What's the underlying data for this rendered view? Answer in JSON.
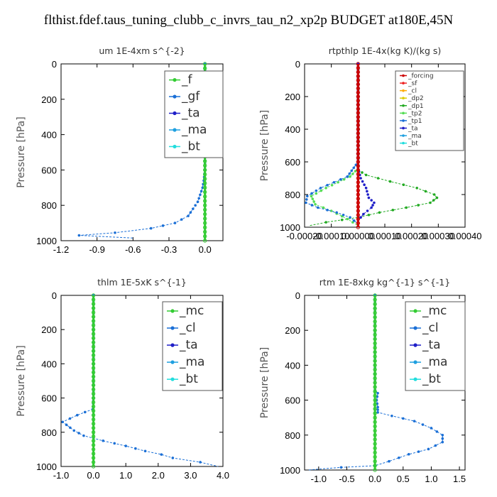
{
  "title": "flthist.fdef.taus_tuning_clubb_c_invrs_tau_n2_xp2p  BUDGET at180E,45N",
  "chart_data": [
    {
      "type": "line",
      "title": "um   1E-4xm  s^{-2}",
      "ylabel": "Pressure [hPa]",
      "xlim": [
        -1.2,
        0.15
      ],
      "ylim": [
        1000,
        0
      ],
      "xticks": [
        "-1.2",
        "-0.9",
        "-0.6",
        "-0.3",
        "0.0"
      ],
      "xtick_values": [
        -1.2,
        -0.9,
        -0.6,
        -0.3,
        0.0
      ],
      "yticks": [
        "0",
        "200",
        "400",
        "600",
        "800",
        "1000"
      ],
      "ytick_values": [
        0,
        200,
        400,
        600,
        800,
        1000
      ],
      "legend_position": "top-right",
      "legend": [
        {
          "label": "_f",
          "color": "#33cc33"
        },
        {
          "label": "_gf",
          "color": "#1a6fd6"
        },
        {
          "label": "_ta",
          "color": "#1f1fc8"
        },
        {
          "label": "_ma",
          "color": "#1fa0e0"
        },
        {
          "label": "_bt",
          "color": "#22dddd"
        }
      ],
      "series": [
        {
          "label": "_gf",
          "color": "#1a6fd6",
          "points": [
            [
              0.0,
              0
            ],
            [
              0.0,
              200
            ],
            [
              0.0,
              400
            ],
            [
              0.0,
              600
            ],
            [
              -0.01,
              660
            ],
            [
              -0.02,
              700
            ],
            [
              -0.04,
              740
            ],
            [
              -0.06,
              780
            ],
            [
              -0.1,
              820
            ],
            [
              -0.14,
              860
            ],
            [
              -0.25,
              900
            ],
            [
              -0.45,
              930
            ],
            [
              -0.75,
              955
            ],
            [
              -1.05,
              970
            ],
            [
              -0.6,
              985
            ]
          ]
        },
        {
          "label": "_f",
          "color": "#33cc33",
          "points": [
            [
              0.0,
              0
            ],
            [
              0.0,
              1000
            ]
          ]
        }
      ]
    },
    {
      "type": "line",
      "title": "rtpthlp   1E-4x(kg K)/(kg s)",
      "ylabel": "Pressure [hPa]",
      "xlim": [
        -0.0002,
        0.0004
      ],
      "ylim": [
        1000,
        0
      ],
      "xticks": [
        "-0.00020",
        "-0.00010",
        "0.00000",
        "0.00010",
        "0.00020",
        "0.00030",
        "0.00040"
      ],
      "xtick_values": [
        -0.0002,
        -0.0001,
        0.0,
        0.0001,
        0.0002,
        0.0003,
        0.0004
      ],
      "yticks": [
        "0",
        "200",
        "400",
        "600",
        "800",
        "1000"
      ],
      "ytick_values": [
        0,
        200,
        400,
        600,
        800,
        1000
      ],
      "legend_position": "top-right",
      "legend": [
        {
          "label": "_forcing",
          "color": "#cc0000"
        },
        {
          "label": "_sf",
          "color": "#ee2222"
        },
        {
          "label": "_cl",
          "color": "#ffaa00"
        },
        {
          "label": "_dp2",
          "color": "#ddcc00"
        },
        {
          "label": "_dp1",
          "color": "#22aa22"
        },
        {
          "label": "_tp2",
          "color": "#55dd55"
        },
        {
          "label": "_tp1",
          "color": "#1a6fd6"
        },
        {
          "label": "_ta",
          "color": "#1f1fc8"
        },
        {
          "label": "_ma",
          "color": "#1fa0e0"
        },
        {
          "label": "_bt",
          "color": "#22dddd"
        }
      ],
      "series": [
        {
          "label": "_dp1",
          "color": "#22aa22",
          "points": [
            [
              0.0,
              0
            ],
            [
              0.0,
              600
            ],
            [
              0.0,
              650
            ],
            [
              3e-05,
              680
            ],
            [
              0.00012,
              720
            ],
            [
              0.00022,
              760
            ],
            [
              0.000285,
              800
            ],
            [
              0.000295,
              820
            ],
            [
              0.00027,
              850
            ],
            [
              0.00018,
              880
            ],
            [
              8e-05,
              910
            ],
            [
              0.0,
              940
            ],
            [
              -0.00012,
              970
            ],
            [
              -0.00018,
              990
            ]
          ]
        },
        {
          "label": "_tp2",
          "color": "#55dd55",
          "points": [
            [
              0.0,
              0
            ],
            [
              0.0,
              640
            ],
            [
              -3e-05,
              690
            ],
            [
              -0.00012,
              760
            ],
            [
              -0.000175,
              810
            ],
            [
              -0.00016,
              860
            ],
            [
              -0.0001,
              900
            ],
            [
              -4e-05,
              950
            ],
            [
              0.0,
              990
            ]
          ]
        },
        {
          "label": "_tp1",
          "color": "#1a6fd6",
          "points": [
            [
              0.0,
              0
            ],
            [
              0.0,
              600
            ],
            [
              -4e-05,
              690
            ],
            [
              -0.00014,
              760
            ],
            [
              -0.00019,
              810
            ],
            [
              -0.000195,
              850
            ],
            [
              -0.00015,
              880
            ],
            [
              -8e-05,
              910
            ],
            [
              -3e-05,
              940
            ],
            [
              0.0,
              980
            ]
          ]
        },
        {
          "label": "_ta",
          "color": "#1f1fc8",
          "points": [
            [
              0.0,
              0
            ],
            [
              0.0,
              640
            ],
            [
              1e-05,
              700
            ],
            [
              3e-05,
              760
            ],
            [
              4e-05,
              820
            ],
            [
              6e-05,
              850
            ],
            [
              5e-05,
              880
            ],
            [
              2e-05,
              920
            ],
            [
              0.0,
              960
            ]
          ]
        },
        {
          "label": "_forcing",
          "color": "#cc0000",
          "points": [
            [
              0.0,
              0
            ],
            [
              0.0,
              1000
            ]
          ]
        }
      ]
    },
    {
      "type": "line",
      "title": "thlm   1E-5xK  s^{-1}",
      "ylabel": "Pressure [hPa]",
      "xlim": [
        -1.0,
        4.0
      ],
      "ylim": [
        1000,
        0
      ],
      "xticks": [
        "-1.0",
        "0.0",
        "1.0",
        "2.0",
        "3.0",
        "4.0"
      ],
      "xtick_values": [
        -1.0,
        0.0,
        1.0,
        2.0,
        3.0,
        4.0
      ],
      "yticks": [
        "0",
        "200",
        "400",
        "600",
        "800",
        "1000"
      ],
      "ytick_values": [
        0,
        200,
        400,
        600,
        800,
        1000
      ],
      "legend_position": "top-right",
      "legend": [
        {
          "label": "_mc",
          "color": "#33cc33"
        },
        {
          "label": "_cl",
          "color": "#1a6fd6"
        },
        {
          "label": "_ta",
          "color": "#1f1fc8"
        },
        {
          "label": "_ma",
          "color": "#1fa0e0"
        },
        {
          "label": "_bt",
          "color": "#22dddd"
        }
      ],
      "series": [
        {
          "label": "_cl",
          "color": "#1a6fd6",
          "points": [
            [
              0.0,
              0
            ],
            [
              0.0,
              600
            ],
            [
              -0.02,
              665
            ],
            [
              -0.5,
              700
            ],
            [
              -0.95,
              740
            ],
            [
              -0.6,
              790
            ],
            [
              -0.3,
              820
            ],
            [
              0.3,
              850
            ],
            [
              1.0,
              880
            ],
            [
              1.6,
              910
            ],
            [
              2.1,
              930
            ],
            [
              2.45,
              950
            ],
            [
              3.3,
              975
            ],
            [
              3.85,
              1000
            ]
          ]
        },
        {
          "label": "_mc",
          "color": "#33cc33",
          "points": [
            [
              0.0,
              0
            ],
            [
              0.0,
              1000
            ]
          ]
        }
      ]
    },
    {
      "type": "line",
      "title": "rtm   1E-8xkg  kg^{-1} s^{-1}",
      "ylabel": "Pressure [hPa]",
      "xlim": [
        -1.25,
        1.6
      ],
      "ylim": [
        1000,
        0
      ],
      "xticks": [
        "-1.0",
        "-0.5",
        "0.0",
        "0.5",
        "1.0",
        "1.5"
      ],
      "xtick_values": [
        -1.0,
        -0.5,
        0.0,
        0.5,
        1.0,
        1.5
      ],
      "yticks": [
        "0",
        "200",
        "400",
        "600",
        "800",
        "1000"
      ],
      "ytick_values": [
        0,
        200,
        400,
        600,
        800,
        1000
      ],
      "legend_position": "top-right",
      "legend": [
        {
          "label": "_mc",
          "color": "#33cc33"
        },
        {
          "label": "_cl",
          "color": "#1a6fd6"
        },
        {
          "label": "_ta",
          "color": "#1f1fc8"
        },
        {
          "label": "_ma",
          "color": "#1fa0e0"
        },
        {
          "label": "_bt",
          "color": "#22dddd"
        }
      ],
      "series": [
        {
          "label": "_cl",
          "color": "#1a6fd6",
          "points": [
            [
              0.0,
              0
            ],
            [
              0.0,
              540
            ],
            [
              0.05,
              560
            ],
            [
              0.03,
              600
            ],
            [
              0.05,
              640
            ],
            [
              0.05,
              670
            ],
            [
              0.3,
              690
            ],
            [
              0.7,
              720
            ],
            [
              1.0,
              760
            ],
            [
              1.2,
              800
            ],
            [
              1.2,
              840
            ],
            [
              0.95,
              880
            ],
            [
              0.6,
              910
            ],
            [
              0.25,
              950
            ],
            [
              0.0,
              975
            ],
            [
              -0.6,
              985
            ],
            [
              -1.2,
              1000
            ]
          ]
        },
        {
          "label": "_mc",
          "color": "#33cc33",
          "points": [
            [
              0.0,
              0
            ],
            [
              0.0,
              1000
            ]
          ]
        }
      ]
    }
  ]
}
